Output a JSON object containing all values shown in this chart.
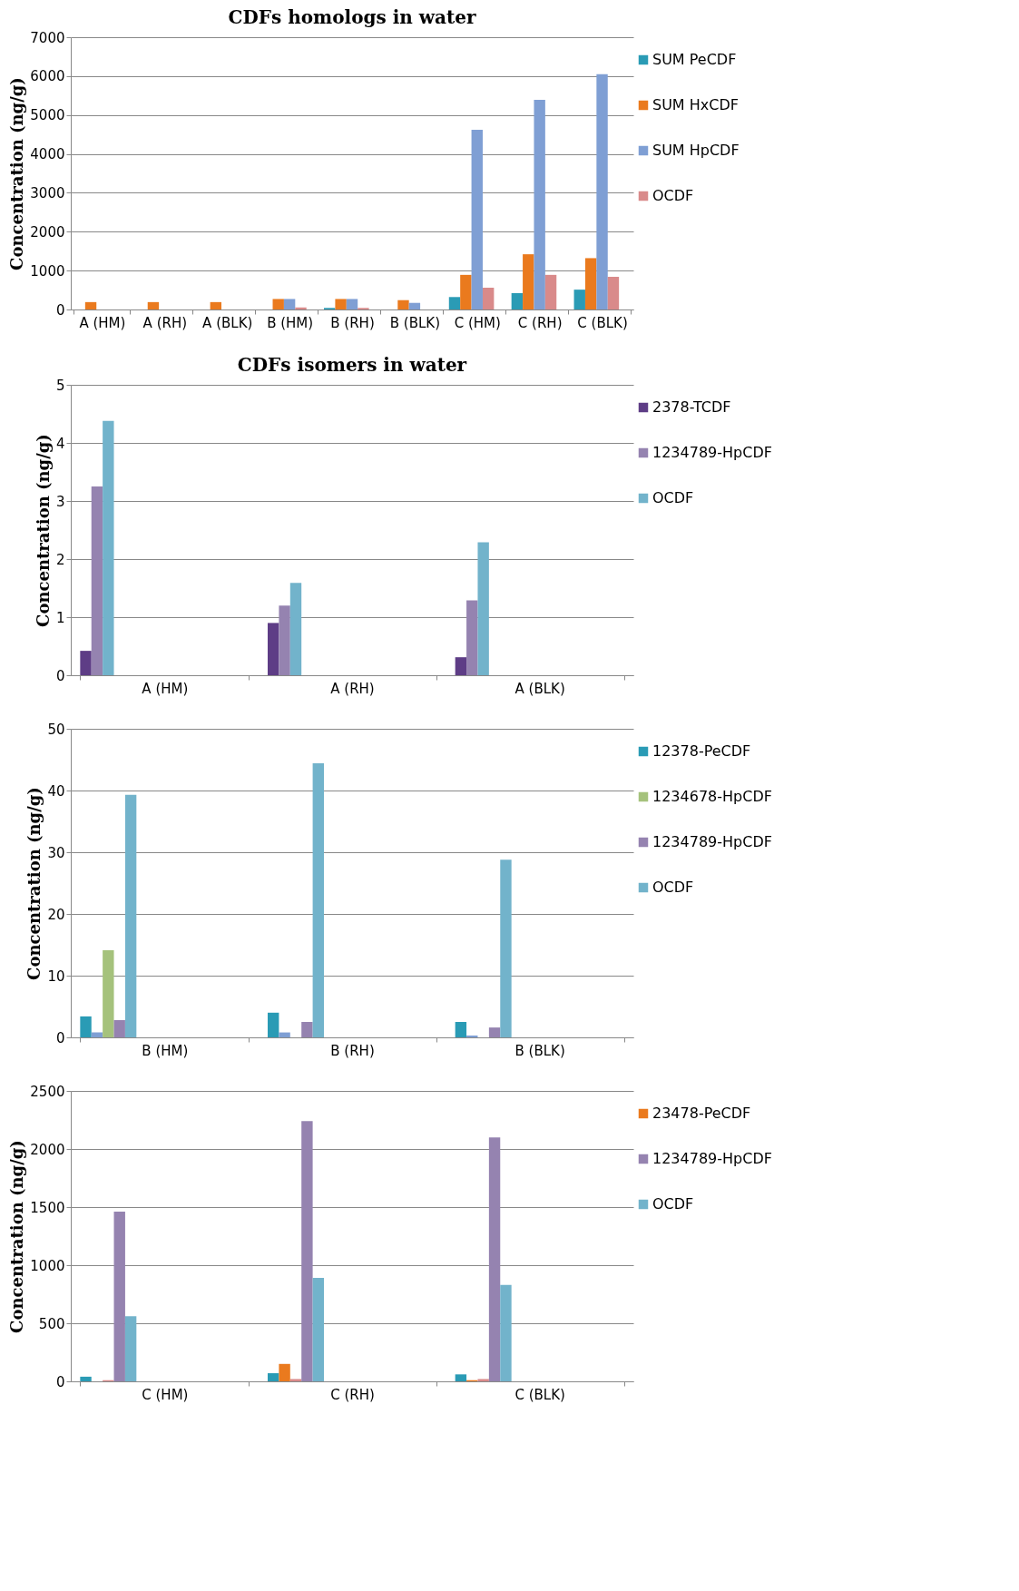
{
  "chart_data": [
    {
      "type": "bar",
      "title": "CDFs homologs in water",
      "ylabel": "Concentration (ng/g)",
      "categories": [
        "A (HM)",
        "A (RH)",
        "A (BLK)",
        "B (HM)",
        "B (RH)",
        "B (BLK)",
        "C (HM)",
        "C (RH)",
        "C (BLK)"
      ],
      "ylim": [
        0,
        7000
      ],
      "yticks": [
        0,
        1000,
        2000,
        3000,
        4000,
        5000,
        6000,
        7000
      ],
      "grid": "y",
      "legend": "right",
      "series": [
        {
          "name": "SUM PeCDF",
          "color": "#2a9bb5",
          "values": [
            0,
            0,
            0,
            0,
            40,
            0,
            320,
            420,
            510
          ]
        },
        {
          "name": "SUM HxCDF",
          "color": "#ea7a1e",
          "values": [
            190,
            190,
            190,
            270,
            270,
            240,
            890,
            1420,
            1320
          ]
        },
        {
          "name": "SUM HpCDF",
          "color": "#7f9fd4",
          "values": [
            0,
            0,
            0,
            270,
            270,
            170,
            4620,
            5390,
            6050
          ]
        },
        {
          "name": "OCDF",
          "color": "#d98a8a",
          "values": [
            0,
            0,
            0,
            50,
            40,
            0,
            560,
            890,
            840
          ]
        }
      ]
    },
    {
      "type": "bar",
      "title": "CDFs isomers in water",
      "ylabel": "Concentration (ng/g)",
      "categories": [
        "A (HM)",
        "A (RH)",
        "A (BLK)"
      ],
      "ylim": [
        0,
        5
      ],
      "yticks": [
        0,
        1,
        2,
        3,
        4,
        5
      ],
      "grid": "y",
      "legend": "right",
      "series": [
        {
          "name": "2378-TCDF",
          "color": "#5e3d86",
          "values": [
            0.42,
            0.9,
            0.31
          ]
        },
        {
          "name": "1234789-HpCDF",
          "color": "#9583b0",
          "values": [
            3.25,
            1.2,
            1.29
          ]
        },
        {
          "name": "OCDF",
          "color": "#72b3cb",
          "values": [
            4.38,
            1.59,
            2.29
          ]
        }
      ]
    },
    {
      "type": "bar",
      "ylabel": "Concentration (ng/g)",
      "categories": [
        "B (HM)",
        "B (RH)",
        "B (BLK)"
      ],
      "ylim": [
        0,
        50
      ],
      "yticks": [
        0,
        10,
        20,
        30,
        40,
        50
      ],
      "grid": "y",
      "legend": "right",
      "series": [
        {
          "name": "12378-PeCDF",
          "color": "#2a9bb5",
          "values": [
            3.4,
            4.0,
            2.5
          ]
        },
        {
          "color": "#7f9fd4",
          "values": [
            0.8,
            0.8,
            0.3
          ]
        },
        {
          "name": "1234678-HpCDF",
          "color": "#a5c27c",
          "values": [
            14.1,
            0,
            0
          ]
        },
        {
          "name": "1234789-HpCDF",
          "color": "#9583b0",
          "values": [
            2.8,
            2.5,
            1.6
          ]
        },
        {
          "name": "OCDF",
          "color": "#72b3cb",
          "values": [
            39.3,
            44.4,
            28.8
          ]
        }
      ]
    },
    {
      "type": "bar",
      "ylabel": "Concentration (ng/g)",
      "categories": [
        "C (HM)",
        "C (RH)",
        "C (BLK)"
      ],
      "ylim": [
        0,
        2500
      ],
      "yticks": [
        0,
        500,
        1000,
        1500,
        2000,
        2500
      ],
      "grid": "y",
      "legend": "right",
      "series": [
        {
          "color": "#2a9bb5",
          "values": [
            40,
            70,
            60
          ]
        },
        {
          "name": "23478-PeCDF",
          "color": "#ea7a1e",
          "values": [
            0,
            150,
            10
          ]
        },
        {
          "color": "#d98a8a",
          "values": [
            10,
            20,
            20
          ]
        },
        {
          "name": "1234789-HpCDF",
          "color": "#9583b0",
          "values": [
            1460,
            2240,
            2100
          ]
        },
        {
          "name": "OCDF",
          "color": "#72b3cb",
          "values": [
            560,
            890,
            830
          ]
        }
      ]
    }
  ]
}
